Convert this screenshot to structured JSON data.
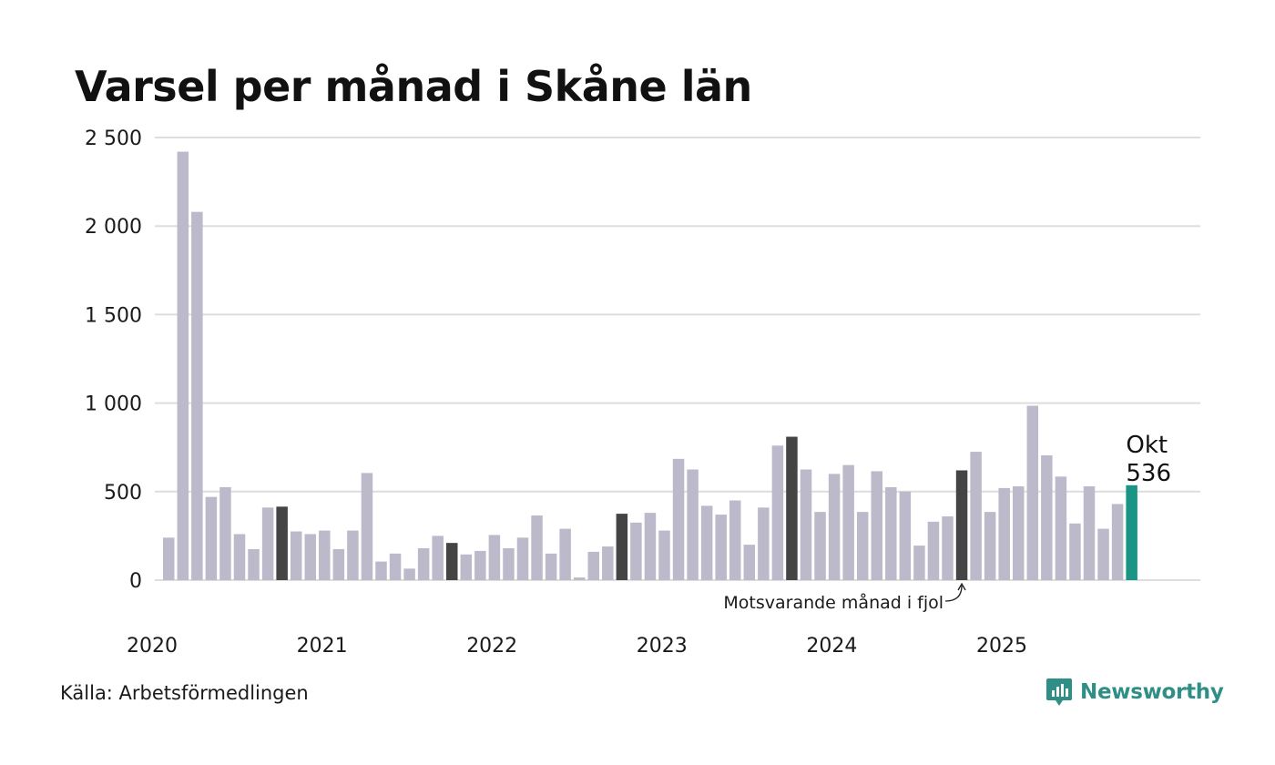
{
  "title": "Varsel per månad i Skåne län",
  "source": "Källa: Arbetsförmedlingen",
  "brand": {
    "name": "Newsworthy",
    "icon": "newsworthy-logo-icon"
  },
  "colors": {
    "bar": "#bcbaca",
    "highlight": "#444444",
    "current": "#1a9485",
    "grid": "#dddddd",
    "brand": "#2f8f86"
  },
  "chart_data": {
    "type": "bar",
    "title": "Varsel per månad i Skåne län",
    "xlabel": "",
    "ylabel": "",
    "ylim": [
      0,
      2500
    ],
    "yticks": [
      0,
      500,
      1000,
      1500,
      2000,
      2500
    ],
    "ytick_labels": [
      "0",
      "500",
      "1 000",
      "1 500",
      "2 000",
      "2 500"
    ],
    "year_labels": [
      {
        "label": "2020",
        "index": 0
      },
      {
        "label": "2021",
        "index": 12
      },
      {
        "label": "2022",
        "index": 24
      },
      {
        "label": "2023",
        "index": 36
      },
      {
        "label": "2024",
        "index": 48
      },
      {
        "label": "2025",
        "index": 60
      }
    ],
    "start": "2020-01",
    "values": [
      240,
      2420,
      2080,
      470,
      525,
      260,
      175,
      410,
      415,
      275,
      260,
      280,
      175,
      280,
      605,
      105,
      150,
      65,
      180,
      250,
      210,
      145,
      165,
      255,
      180,
      240,
      365,
      150,
      290,
      15,
      160,
      190,
      375,
      325,
      380,
      280,
      685,
      625,
      420,
      370,
      450,
      200,
      410,
      760,
      810,
      625,
      385,
      600,
      650,
      385,
      615,
      525,
      500,
      195,
      330,
      360,
      620,
      725,
      385,
      520,
      530,
      985,
      705,
      585,
      320,
      530,
      290,
      430,
      536
    ],
    "highlight_indices": [
      8,
      20,
      32,
      44,
      56
    ],
    "current_index": 68,
    "current_label": {
      "month": "Okt",
      "value": "536"
    },
    "annotation": {
      "text": "Motsvarande månad i fjol",
      "index": 56
    }
  }
}
